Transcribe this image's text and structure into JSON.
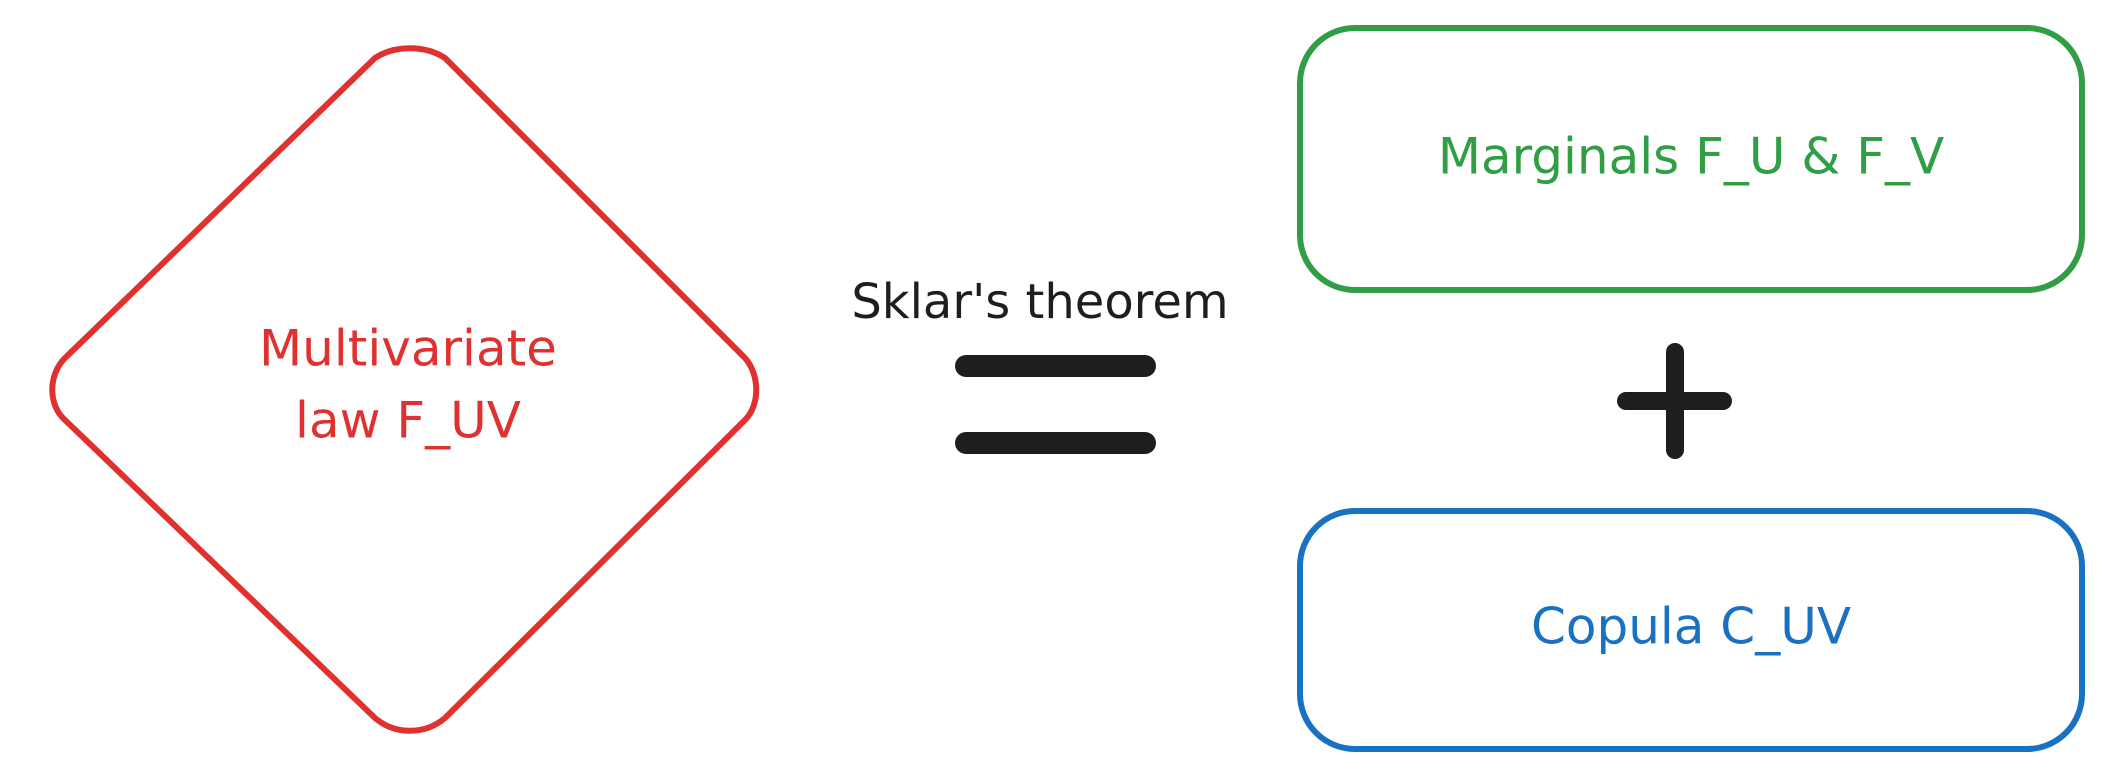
{
  "diagram": {
    "left_shape": {
      "line1": "Multivariate",
      "line2": "law F_UV",
      "color": "#e03131"
    },
    "relation_label": "Sklar's theorem",
    "relation_color": "#1e1e1e",
    "equals_icon": "equals-sign",
    "plus_icon": "plus-sign",
    "top_box": {
      "label": "Marginals F_U & F_V",
      "color": "#2f9e44"
    },
    "bottom_box": {
      "label": "Copula C_UV",
      "color": "#1971c2"
    }
  }
}
